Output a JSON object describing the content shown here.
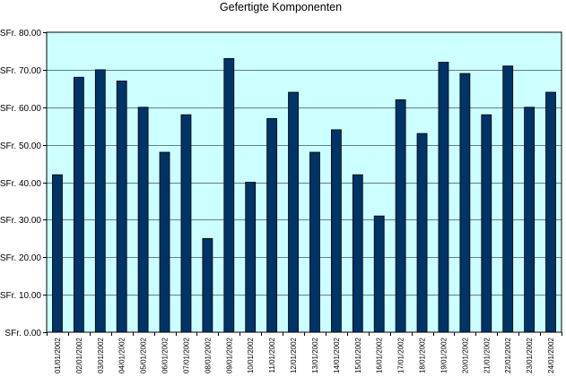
{
  "chart_data": {
    "type": "bar",
    "title": "Gefertigte Komponenten",
    "xlabel": "",
    "ylabel": "",
    "categories": [
      "01/01/2002",
      "02/01/2002",
      "03/01/2002",
      "04/01/2002",
      "05/01/2002",
      "06/01/2002",
      "07/01/2002",
      "08/01/2002",
      "09/01/2002",
      "10/01/2002",
      "11/01/2002",
      "12/01/2002",
      "13/01/2002",
      "14/01/2002",
      "15/01/2002",
      "16/01/2002",
      "17/01/2002",
      "18/01/2002",
      "19/01/2002",
      "20/01/2002",
      "21/01/2002",
      "22/01/2002",
      "23/01/2002",
      "24/01/2002"
    ],
    "values": [
      42,
      68,
      70,
      67,
      60,
      48,
      58,
      25,
      73,
      40,
      57,
      64,
      48,
      54,
      42,
      31,
      62,
      53,
      72,
      69,
      58,
      71,
      60,
      64
    ],
    "ylim": [
      0,
      80
    ],
    "ytick_values": [
      0,
      10,
      20,
      30,
      40,
      50,
      60,
      70,
      80
    ],
    "ytick_labels": [
      "SFr. 0.00",
      "SFr. 10.00",
      "SFr. 20.00",
      "SFr. 30.00",
      "SFr. 40.00",
      "SFr. 50.00",
      "SFr. 60.00",
      "SFr. 70.00",
      "SFr. 80.00"
    ],
    "grid": true,
    "legend": false,
    "colors": {
      "bar": "#003366",
      "plot_background": "#ccffff",
      "gridline": "#000000"
    }
  }
}
